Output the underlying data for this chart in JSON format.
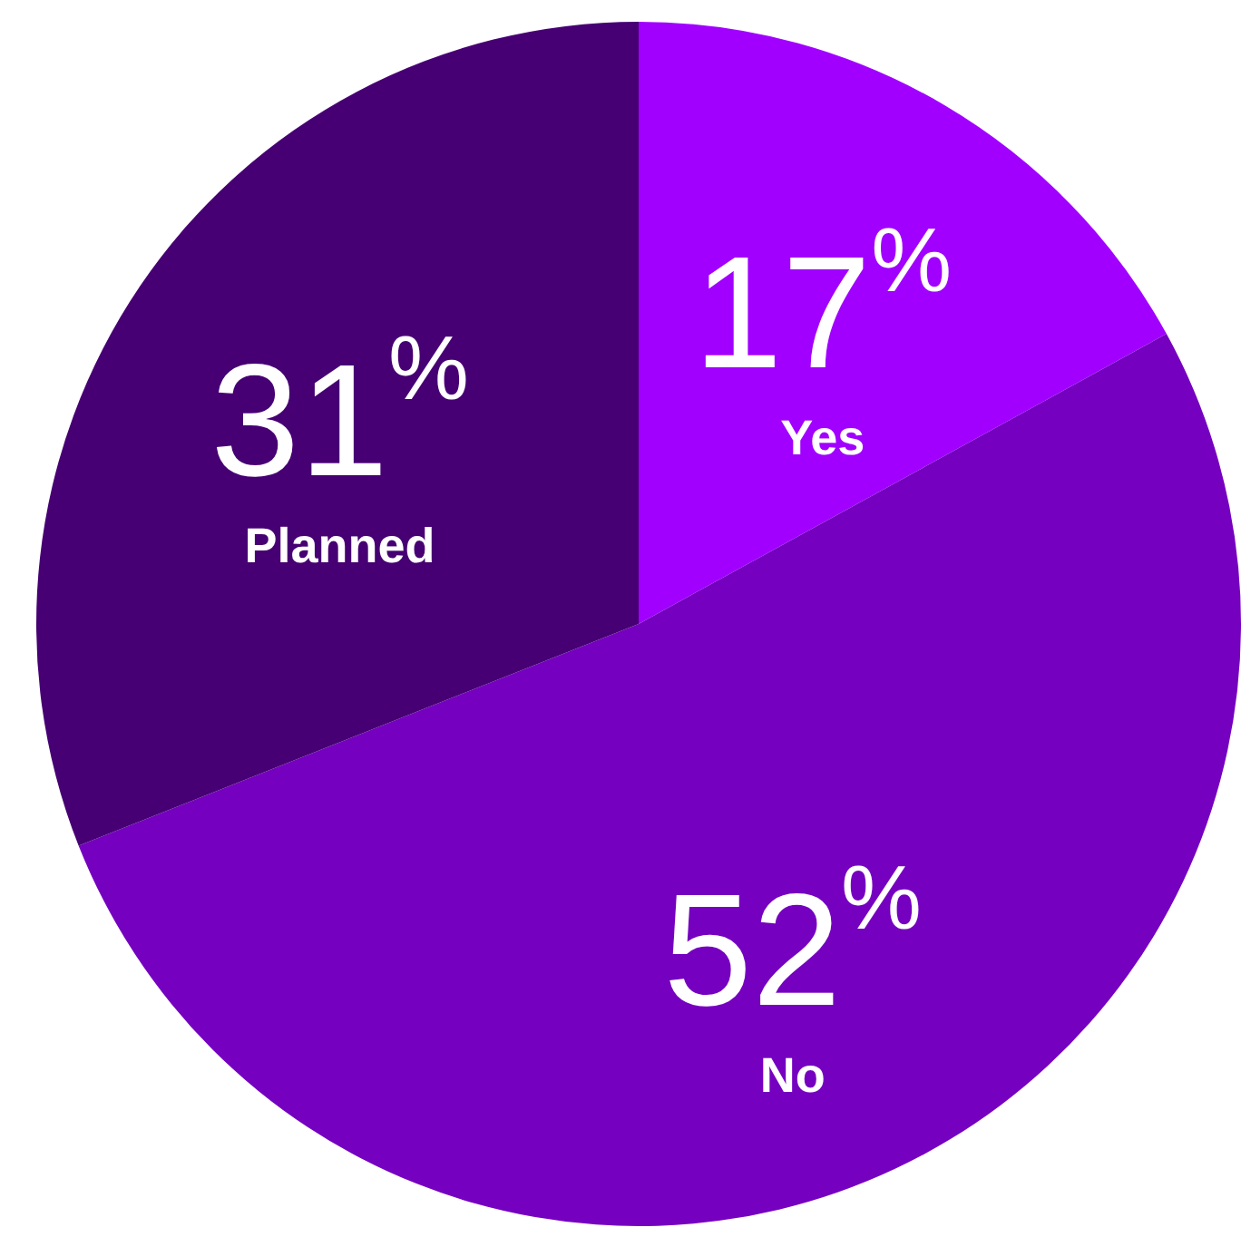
{
  "chart_data": {
    "type": "pie",
    "categories": [
      "Yes",
      "No",
      "Planned"
    ],
    "values": [
      17,
      52,
      31
    ],
    "colors": [
      "#a100ff",
      "#7500c0",
      "#460073"
    ],
    "value_labels": [
      "17%",
      "52%",
      "31%"
    ],
    "legend": false
  }
}
